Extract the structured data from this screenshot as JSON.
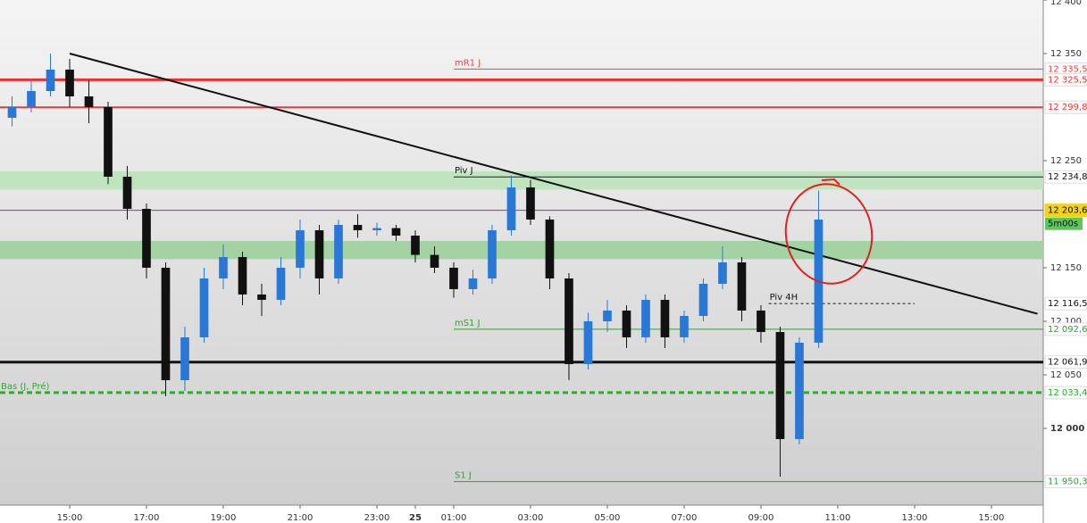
{
  "chart_data": {
    "type": "candlestick",
    "xlim": [
      13.186,
      40.35
    ],
    "ylim": [
      11928.3,
      12400
    ],
    "xticks": [
      {
        "value": 15,
        "label": "15:00"
      },
      {
        "value": 17,
        "label": "17:00"
      },
      {
        "value": 19,
        "label": "19:00"
      },
      {
        "value": 21,
        "label": "21:00"
      },
      {
        "value": 23,
        "label": "23:00"
      },
      {
        "value": 24,
        "label": "25"
      },
      {
        "value": 25,
        "label": "01:00"
      },
      {
        "value": 27,
        "label": "03:00"
      },
      {
        "value": 29,
        "label": "05:00"
      },
      {
        "value": 31,
        "label": "07:00"
      },
      {
        "value": 33,
        "label": "09:00"
      },
      {
        "value": 35,
        "label": "11:00"
      },
      {
        "value": 37,
        "label": "13:00"
      },
      {
        "value": 39,
        "label": "15:00"
      }
    ],
    "yticks": [
      {
        "value": 12400,
        "label": "12 400"
      },
      {
        "value": 12350,
        "label": "12 350"
      },
      {
        "value": 12250,
        "label": "12 250"
      },
      {
        "value": 12150,
        "label": "12 150"
      },
      {
        "value": 12100,
        "label": "12 100"
      },
      {
        "value": 12050,
        "label": "12 050"
      },
      {
        "value": 12000,
        "label": "12 000",
        "bold": true
      }
    ],
    "up_color": "#2a78d6",
    "down_color": "#111111",
    "x": [
      13.5,
      14,
      14.5,
      15,
      15.5,
      16,
      16.5,
      17,
      17.5,
      18,
      18.5,
      19,
      19.5,
      20,
      20.5,
      21,
      21.5,
      22,
      22.5,
      23,
      23.5,
      24,
      24.5,
      25,
      25.5,
      26,
      26.5,
      27,
      27.5,
      28,
      28.5,
      29,
      29.5,
      30,
      30.5,
      31,
      31.5,
      32,
      32.5,
      33,
      33.5,
      34,
      34.5
    ],
    "open": [
      12290,
      12300,
      12315,
      12335,
      12310,
      12300,
      12235,
      12205,
      12150,
      12045,
      12085,
      12140,
      12160,
      12125,
      12120,
      12150,
      12185,
      12140,
      12190,
      12185,
      12187,
      12180,
      12162,
      12150,
      12130,
      12140,
      12185,
      12225,
      12195,
      12140,
      12060,
      12100,
      12110,
      12085,
      12120,
      12085,
      12105,
      12135,
      12155,
      12110,
      12090,
      11990,
      12080
    ],
    "high": [
      12310,
      12325,
      12350,
      12345,
      12325,
      12305,
      12245,
      12210,
      12155,
      12095,
      12150,
      12172,
      12165,
      12135,
      12160,
      12195,
      12190,
      12195,
      12200,
      12192,
      12190,
      12185,
      12170,
      12155,
      12148,
      12190,
      12236,
      12232,
      12198,
      12145,
      12108,
      12120,
      12115,
      12125,
      12125,
      12110,
      12140,
      12170,
      12160,
      12115,
      12095,
      12085,
      12222
    ],
    "low": [
      12282,
      12295,
      12310,
      12300,
      12285,
      12228,
      12195,
      12140,
      12030,
      12035,
      12080,
      12130,
      12115,
      12105,
      12115,
      12140,
      12125,
      12135,
      12178,
      12180,
      12175,
      12155,
      12145,
      12122,
      12125,
      12135,
      12180,
      12190,
      12130,
      12045,
      12055,
      12090,
      12075,
      12080,
      12075,
      12080,
      12100,
      12130,
      12100,
      12080,
      11955,
      11985,
      12075
    ],
    "close": [
      12300,
      12315,
      12335,
      12310,
      12300,
      12235,
      12205,
      12150,
      12045,
      12085,
      12140,
      12160,
      12125,
      12120,
      12150,
      12185,
      12140,
      12190,
      12185,
      12187,
      12180,
      12162,
      12150,
      12130,
      12140,
      12185,
      12225,
      12195,
      12140,
      12060,
      12100,
      12110,
      12085,
      12120,
      12085,
      12105,
      12135,
      12155,
      12110,
      12090,
      11990,
      12080,
      12195
    ],
    "bands": [
      {
        "ylim": [
          12223,
          12240
        ],
        "color": "#bfe5bf"
      },
      {
        "ylim": [
          12158,
          12175
        ],
        "color": "#a3d2a3"
      }
    ],
    "levels": [
      {
        "name": "mR1 J",
        "value": 12335.5,
        "price_label": "12 335,5",
        "color": "#e04848",
        "style": "thin",
        "x_start": 25
      },
      {
        "value": 12325.5,
        "price_label": "12 325,5",
        "color": "#e83030",
        "style": "thick"
      },
      {
        "value": 12299.8,
        "price_label": "12 299,8",
        "color": "#e04040",
        "style": "medium"
      },
      {
        "name": "Piv J",
        "value": 12234.8,
        "price_label": "12 234,8",
        "color": "#222222",
        "style": "thin",
        "x_start": 25
      },
      {
        "value": 12203.6,
        "price_label": "12 203,6",
        "color": "#b020b0",
        "style": "thin",
        "tag_fill": "#f2d21a"
      },
      {
        "name": "Piv 4H",
        "value": 12116.5,
        "price_label": "12 116,5",
        "color": "#111111",
        "style": "dash",
        "x_start": 33.2,
        "x_end": 37
      },
      {
        "name": "mS1 J",
        "value": 12092.6,
        "price_label": "12 092,6",
        "color": "#3a9a3a",
        "style": "thin",
        "x_start": 25
      },
      {
        "value": 12061.9,
        "price_label": "12 061,9",
        "color": "#111111",
        "style": "thick"
      },
      {
        "name": "Bas (J, Pré)",
        "value": 12033.4,
        "price_label": "12 033,4",
        "color": "#2cab2c",
        "style": "thickdash"
      },
      {
        "name": "S1 J",
        "value": 11950.3,
        "price_label": "11 950,3",
        "color": "#3a9a3a",
        "style": "thin",
        "x_start": 25
      }
    ],
    "trendline": {
      "x": [
        15,
        40.2
      ],
      "y": [
        12350,
        12107
      ],
      "color": "#111111"
    },
    "countdown": "5m00s"
  }
}
